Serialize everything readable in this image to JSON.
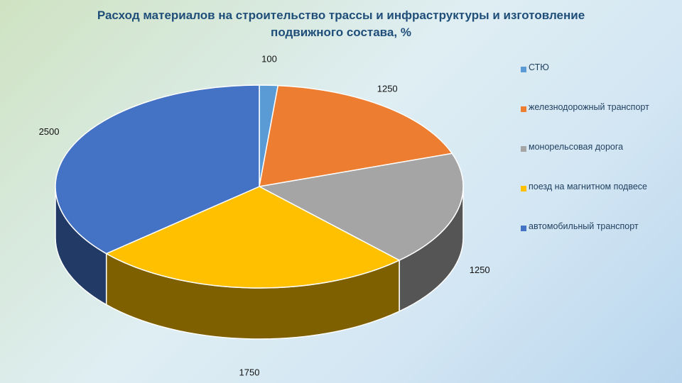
{
  "chart_data": {
    "type": "pie",
    "title": "Расход материалов на строительство трассы и инфраструктуры и изготовление подвижного состава, %",
    "title_lines": [
      "Расход материалов на строительство трассы и инфраструктуры и изготовление",
      "подвижного состава, %"
    ],
    "labels": [
      "СТЮ",
      "железнодорожный транспорт",
      "монорельсовая дорога",
      "поезд на магнитном подвесе",
      "автомобильный транспорт"
    ],
    "values": [
      100,
      1250,
      1250,
      1750,
      2500
    ],
    "data_labels": [
      "100",
      "1250",
      "1250",
      "1750",
      "2500"
    ],
    "colors": [
      "#5b9bd5",
      "#ed7d31",
      "#a5a5a5",
      "#ffc000",
      "#4472c4"
    ],
    "side_colors": [
      "#2e5b86",
      "#8f4b1d",
      "#555555",
      "#7f6000",
      "#223a66"
    ],
    "legend_position": "right",
    "style": "3d-pie"
  }
}
